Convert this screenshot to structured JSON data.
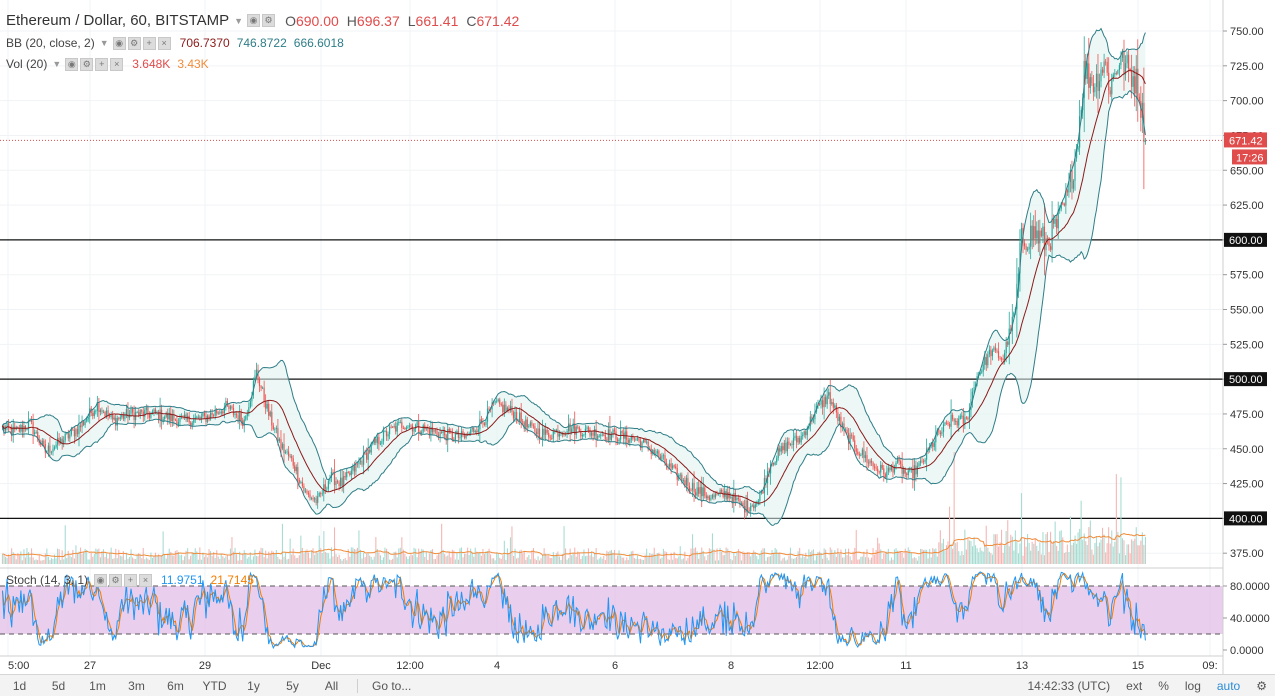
{
  "header": {
    "symbol_title": "Ethereum / Dollar, 60, BITSTAMP",
    "ohlc": [
      {
        "k": "O",
        "v": "690.00"
      },
      {
        "k": "H",
        "v": "696.37"
      },
      {
        "k": "L",
        "v": "661.41"
      },
      {
        "k": "C",
        "v": "671.42"
      }
    ]
  },
  "indicators": {
    "bb": {
      "label": "BB (20, close, 2)",
      "values": [
        "706.7370",
        "746.8722",
        "666.6018"
      ],
      "colors": [
        "#8b1a1a",
        "#2e7d87",
        "#2e7d87"
      ]
    },
    "vol": {
      "label": "Vol (20)",
      "values": [
        "3.648K",
        "3.43K"
      ],
      "colors": [
        "#e04b4b",
        "#f08c3a"
      ]
    },
    "stoch": {
      "label": "Stoch (14, 3, 1)",
      "values": [
        "11.9751",
        "21.7145"
      ],
      "colors": [
        "#2196f3",
        "#f57c00"
      ]
    }
  },
  "price_axis": {
    "ticks": [
      "750.00",
      "725.00",
      "700.00",
      "675.00",
      "650.00",
      "625.00",
      "600.00",
      "575.00",
      "550.00",
      "525.00",
      "500.00",
      "475.00",
      "450.00",
      "425.00",
      "400.00",
      "375.00"
    ],
    "last_price": "671.42",
    "countdown": "17:26",
    "levels": [
      "600.00",
      "500.00",
      "400.00"
    ]
  },
  "stoch_axis": {
    "ticks": [
      "80.0000",
      "40.0000",
      "0.0000"
    ]
  },
  "time_axis": {
    "ticks": [
      "5:00",
      "27",
      "29",
      "Dec",
      "12:00",
      "4",
      "6",
      "8",
      "12:00",
      "11",
      "13",
      "15",
      "09:"
    ]
  },
  "bottom_bar": {
    "timeframes": [
      "1d",
      "5d",
      "1m",
      "3m",
      "6m",
      "YTD",
      "1y",
      "5y",
      "All"
    ],
    "goto": "Go to...",
    "time_zone": "14:42:33 (UTC)",
    "options": [
      "ext",
      "%",
      "log",
      "auto"
    ]
  },
  "colors": {
    "up": "#26a69a",
    "down": "#ef5350",
    "bb_basis": "#8b1a1a",
    "bb_band": "#2e7d87",
    "stoch_fill": "#e1bee7"
  },
  "chart_data": {
    "type": "candlestick",
    "symbol": "ETHUSD",
    "interval": "60",
    "x_labels": [
      "5:00",
      "27",
      "29",
      "Dec",
      "12:00",
      "4",
      "6",
      "8",
      "12:00",
      "11",
      "13",
      "15"
    ],
    "ylim": [
      362,
      758
    ],
    "price_anchors": [
      [
        0,
        465
      ],
      [
        8,
        462
      ],
      [
        18,
        468
      ],
      [
        28,
        448
      ],
      [
        38,
        455
      ],
      [
        50,
        465
      ],
      [
        62,
        482
      ],
      [
        72,
        470
      ],
      [
        82,
        475
      ],
      [
        100,
        475
      ],
      [
        118,
        470
      ],
      [
        132,
        472
      ],
      [
        146,
        480
      ],
      [
        158,
        470
      ],
      [
        166,
        505
      ],
      [
        174,
        475
      ],
      [
        182,
        452
      ],
      [
        190,
        440
      ],
      [
        198,
        418
      ],
      [
        206,
        412
      ],
      [
        214,
        430
      ],
      [
        222,
        425
      ],
      [
        232,
        438
      ],
      [
        242,
        452
      ],
      [
        252,
        462
      ],
      [
        262,
        468
      ],
      [
        276,
        464
      ],
      [
        290,
        460
      ],
      [
        302,
        458
      ],
      [
        314,
        470
      ],
      [
        322,
        482
      ],
      [
        334,
        476
      ],
      [
        344,
        465
      ],
      [
        356,
        460
      ],
      [
        370,
        465
      ],
      [
        384,
        462
      ],
      [
        398,
        460
      ],
      [
        414,
        457
      ],
      [
        426,
        448
      ],
      [
        440,
        432
      ],
      [
        454,
        420
      ],
      [
        464,
        415
      ],
      [
        474,
        418
      ],
      [
        484,
        408
      ],
      [
        494,
        412
      ],
      [
        502,
        440
      ],
      [
        512,
        452
      ],
      [
        522,
        458
      ],
      [
        532,
        478
      ],
      [
        540,
        488
      ],
      [
        550,
        462
      ],
      [
        560,
        448
      ],
      [
        570,
        437
      ],
      [
        578,
        432
      ],
      [
        584,
        440
      ],
      [
        592,
        430
      ],
      [
        600,
        438
      ],
      [
        610,
        458
      ],
      [
        620,
        470
      ],
      [
        630,
        470
      ],
      [
        636,
        500
      ],
      [
        646,
        520
      ],
      [
        654,
        515
      ],
      [
        662,
        550
      ],
      [
        666,
        600
      ],
      [
        674,
        605
      ],
      [
        682,
        598
      ],
      [
        690,
        612
      ],
      [
        696,
        630
      ],
      [
        702,
        665
      ],
      [
        707,
        722
      ],
      [
        714,
        712
      ],
      [
        720,
        728
      ],
      [
        724,
        710
      ],
      [
        730,
        730
      ],
      [
        736,
        722
      ],
      [
        742,
        712
      ],
      [
        745,
        690
      ],
      [
        747,
        672
      ]
    ],
    "lines": [
      {
        "name": "BB basis",
        "period": 20
      },
      {
        "name": "BB upper",
        "period": 20,
        "mult": 2
      },
      {
        "name": "BB lower",
        "period": 20,
        "mult": 2
      }
    ],
    "levels": [
      600,
      500,
      400
    ],
    "last_close": 671.42,
    "stoch_overbought": 80,
    "stoch_oversold": 20
  }
}
